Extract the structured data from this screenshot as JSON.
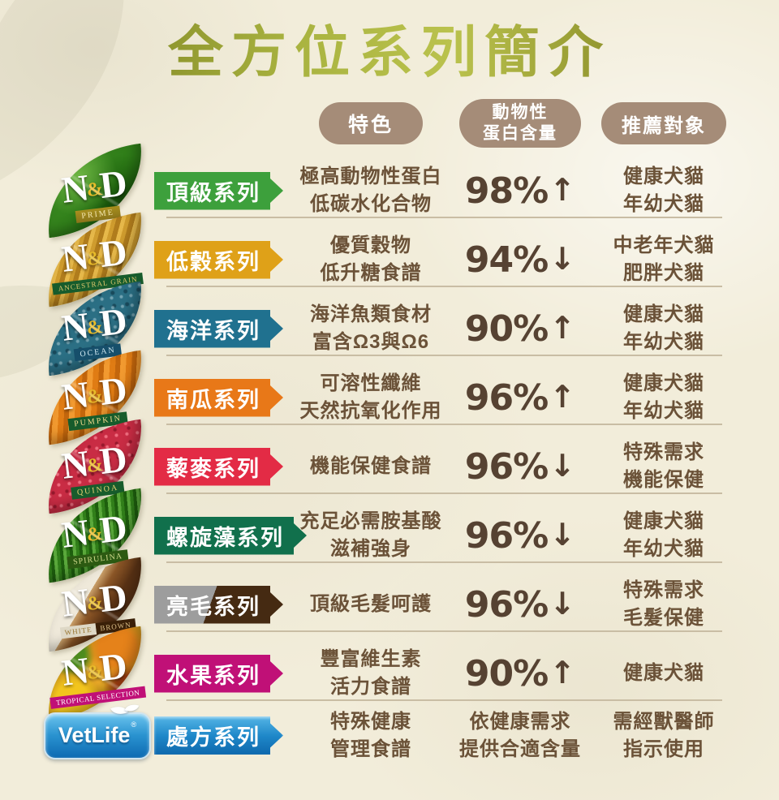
{
  "page": {
    "title": "全方位系列簡介",
    "title_colors": [
      "#6f7319",
      "#a9b340",
      "#bac24d",
      "#67660f"
    ],
    "background_color": "#f2edda",
    "divider_color": "#c9bda4",
    "text_color": "#6b5238"
  },
  "header": {
    "pill_color": "#a58c78",
    "feature_label": "特色",
    "protein_label_line1": "動物性",
    "protein_label_line2": "蛋白含量",
    "recommend_label": "推薦對象"
  },
  "rows": [
    {
      "logo": {
        "n": "N",
        "amp": "&",
        "d": "D",
        "sub": "PRIME",
        "texture": "green-leaf"
      },
      "series": "頂級系列",
      "series_color": "#3da03c",
      "feature": [
        "極高動物性蛋白",
        "低碳水化合物"
      ],
      "protein": "98%",
      "trend": "↑",
      "recommend": [
        "健康犬貓",
        "年幼犬貓"
      ]
    },
    {
      "logo": {
        "n": "N",
        "amp": "&",
        "d": "D",
        "sub": "ANCESTRAL GRAIN",
        "texture": "wheat-leaf"
      },
      "series": "低穀系列",
      "series_color": "#dfa118",
      "feature": [
        "優質穀物",
        "低升糖食譜"
      ],
      "protein": "94%",
      "trend": "↓",
      "recommend": [
        "中老年犬貓",
        "肥胖犬貓"
      ]
    },
    {
      "logo": {
        "n": "N",
        "amp": "&",
        "d": "D",
        "sub": "OCEAN",
        "texture": "fish-scale-leaf"
      },
      "series": "海洋系列",
      "series_color": "#20718f",
      "feature": [
        "海洋魚類食材",
        "富含Ω3與Ω6"
      ],
      "protein": "90%",
      "trend": "↑",
      "recommend": [
        "健康犬貓",
        "年幼犬貓"
      ]
    },
    {
      "logo": {
        "n": "N",
        "amp": "&",
        "d": "D",
        "sub": "PUMPKIN",
        "texture": "pumpkin-leaf"
      },
      "series": "南瓜系列",
      "series_color": "#e87818",
      "feature": [
        "可溶性纖維",
        "天然抗氧化作用"
      ],
      "protein": "96%",
      "trend": "↑",
      "recommend": [
        "健康犬貓",
        "年幼犬貓"
      ]
    },
    {
      "logo": {
        "n": "N",
        "amp": "&",
        "d": "D",
        "sub": "QUINOA",
        "texture": "quinoa-leaf"
      },
      "series": "藜麥系列",
      "series_color": "#e32b45",
      "feature": [
        "機能保健食譜"
      ],
      "protein": "96%",
      "trend": "↓",
      "recommend": [
        "特殊需求",
        "機能保健"
      ]
    },
    {
      "logo": {
        "n": "N",
        "amp": "&",
        "d": "D",
        "sub": "SPIRULINA",
        "texture": "spirulina-leaf"
      },
      "series": "螺旋藻系列",
      "series_color": "#11704c",
      "feature": [
        "充足必需胺基酸",
        "滋補強身"
      ],
      "protein": "96%",
      "trend": "↓",
      "recommend": [
        "健康犬貓",
        "年幼犬貓"
      ]
    },
    {
      "logo": {
        "n": "N",
        "amp": "&",
        "d": "D",
        "sub1": "WHITE",
        "sub2": "BROWN",
        "texture": "coat-leaf"
      },
      "series": "亮毛系列",
      "series_colors": [
        "#9d9d9d",
        "#452a12"
      ],
      "feature": [
        "頂級毛髮呵護"
      ],
      "protein": "96%",
      "trend": "↓",
      "recommend": [
        "特殊需求",
        "毛髮保健"
      ]
    },
    {
      "logo": {
        "n": "N",
        "amp": "&",
        "d": "D",
        "sub": "TROPICAL SELECTION",
        "texture": "tropical-fruit-leaf"
      },
      "series": "水果系列",
      "series_color": "#c01077",
      "feature": [
        "豐富維生素",
        "活力食譜"
      ],
      "protein": "90%",
      "trend": "↑",
      "recommend": [
        "健康犬貓"
      ]
    },
    {
      "logo": {
        "brand": "VetLife",
        "reg": "®"
      },
      "series": "處方系列",
      "series_colors": [
        "#54b5e6",
        "#1e87c8",
        "#0e68ad"
      ],
      "feature": [
        "特殊健康",
        "管理食譜"
      ],
      "protein_lines": [
        "依健康需求",
        "提供合適含量"
      ],
      "recommend": [
        "需經獸醫師",
        "指示使用"
      ]
    }
  ]
}
